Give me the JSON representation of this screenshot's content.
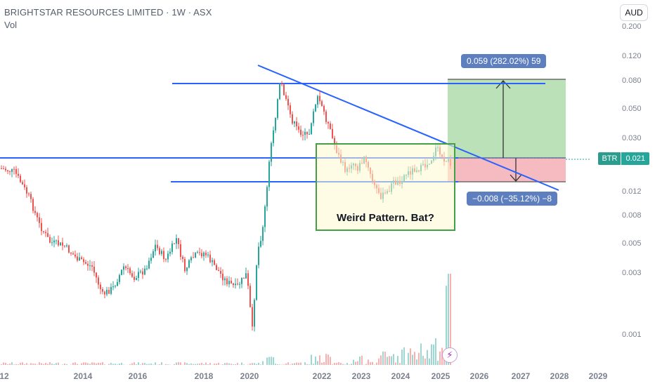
{
  "header": {
    "symbol_line": "BRIGHTSTAR RESOURCES LIMITED · 1W · ASX",
    "volume_label": "Vol"
  },
  "currency_button": "AUD",
  "price_axis": {
    "ticks": [
      "0.200",
      "0.120",
      "0.080",
      "0.050",
      "0.030",
      "0.012",
      "0.008",
      "0.005",
      "0.003",
      "0.001"
    ]
  },
  "time_axis": {
    "ticks": [
      "12",
      "2014",
      "2016",
      "2018",
      "2020",
      "2022",
      "2023",
      "2024",
      "2025",
      "2026",
      "2027",
      "2028",
      "2029"
    ]
  },
  "last_price": {
    "symbol": "BTR",
    "value": "0.021"
  },
  "position": {
    "target_label": "0.059 (282.02%) 59",
    "stop_label": "−0.008 (−35.12%) −8"
  },
  "annotation": {
    "text": "Weird Pattern. Bat?"
  },
  "colors": {
    "up": "#26a69a",
    "down": "#ef5350",
    "trendline": "#2962ff",
    "profit_zone": "#b7dfb4",
    "loss_zone": "#f6b7bd"
  },
  "icons": {
    "bolt": "lightning-icon"
  }
}
